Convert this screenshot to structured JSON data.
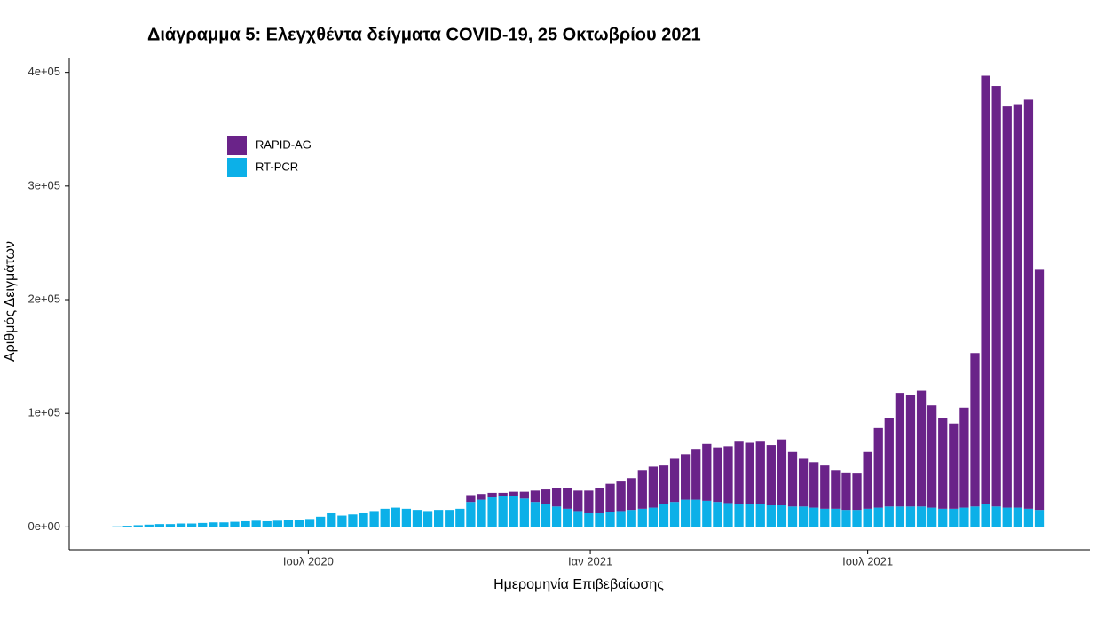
{
  "chart_data": {
    "type": "stacked-bar",
    "title": "Διάγραμμα 5: Ελεγχθέντα δείγματα COVID-19, 25 Οκτωβρίου 2021",
    "x_label": "Ημερομηνία Επιβεβαίωσης",
    "y_label": "Αριθμός Δειγμάτων",
    "x": [
      "2020-02-27",
      "2020-03-05",
      "2020-03-12",
      "2020-03-19",
      "2020-03-26",
      "2020-04-02",
      "2020-04-09",
      "2020-04-16",
      "2020-04-23",
      "2020-04-30",
      "2020-05-07",
      "2020-05-14",
      "2020-05-21",
      "2020-05-28",
      "2020-06-04",
      "2020-06-11",
      "2020-06-18",
      "2020-06-25",
      "2020-07-02",
      "2020-07-09",
      "2020-07-16",
      "2020-07-23",
      "2020-07-30",
      "2020-08-06",
      "2020-08-13",
      "2020-08-20",
      "2020-08-27",
      "2020-09-03",
      "2020-09-10",
      "2020-09-17",
      "2020-09-24",
      "2020-10-01",
      "2020-10-08",
      "2020-10-15",
      "2020-10-22",
      "2020-10-29",
      "2020-11-05",
      "2020-11-12",
      "2020-11-19",
      "2020-11-26",
      "2020-12-03",
      "2020-12-10",
      "2020-12-17",
      "2020-12-24",
      "2020-12-31",
      "2021-01-07",
      "2021-01-14",
      "2021-01-21",
      "2021-01-28",
      "2021-02-04",
      "2021-02-11",
      "2021-02-18",
      "2021-02-25",
      "2021-03-04",
      "2021-03-11",
      "2021-03-18",
      "2021-03-25",
      "2021-04-01",
      "2021-04-08",
      "2021-04-15",
      "2021-04-22",
      "2021-04-29",
      "2021-05-06",
      "2021-05-13",
      "2021-05-20",
      "2021-05-27",
      "2021-06-03",
      "2021-06-10",
      "2021-06-17",
      "2021-06-24",
      "2021-07-01",
      "2021-07-08",
      "2021-07-15",
      "2021-07-22",
      "2021-07-29",
      "2021-08-05",
      "2021-08-12",
      "2021-08-19",
      "2021-08-26",
      "2021-09-02",
      "2021-09-09",
      "2021-09-16",
      "2021-09-23",
      "2021-09-30",
      "2021-10-07",
      "2021-10-14",
      "2021-10-21"
    ],
    "series": [
      {
        "name": "RAPID-AG",
        "color": "#6a2389",
        "values": [
          0,
          0,
          0,
          0,
          0,
          0,
          0,
          0,
          0,
          0,
          0,
          0,
          0,
          0,
          0,
          0,
          0,
          0,
          0,
          0,
          0,
          0,
          0,
          0,
          0,
          0,
          0,
          0,
          0,
          0,
          0,
          0,
          0,
          6000,
          5000,
          4000,
          3000,
          4000,
          6000,
          10000,
          13000,
          16000,
          18000,
          18000,
          20000,
          22000,
          25000,
          26000,
          28000,
          34000,
          36000,
          34000,
          38000,
          40000,
          44000,
          50000,
          48000,
          50000,
          55000,
          54000,
          55000,
          53000,
          58000,
          48000,
          42000,
          40000,
          38000,
          34000,
          33000,
          32000,
          50000,
          70000,
          78000,
          100000,
          98000,
          102000,
          90000,
          80000,
          75000,
          88000,
          135000,
          377000,
          370000,
          353000,
          355000,
          360000,
          212000
        ]
      },
      {
        "name": "RT-PCR",
        "color": "#0cb0e8",
        "values": [
          500,
          1000,
          1500,
          2000,
          2500,
          2500,
          3000,
          3000,
          3500,
          4000,
          4000,
          4500,
          5000,
          5500,
          5000,
          5500,
          6000,
          6500,
          7000,
          9000,
          12000,
          10000,
          11000,
          12000,
          14000,
          16000,
          17000,
          16000,
          15000,
          14000,
          15000,
          15000,
          16000,
          22000,
          24000,
          26000,
          27000,
          27000,
          25000,
          22000,
          20000,
          18000,
          16000,
          14000,
          12000,
          12000,
          13000,
          14000,
          15000,
          16000,
          17000,
          20000,
          22000,
          24000,
          24000,
          23000,
          22000,
          21000,
          20000,
          20000,
          20000,
          19000,
          19000,
          18000,
          18000,
          17000,
          16000,
          16000,
          15000,
          15000,
          16000,
          17000,
          18000,
          18000,
          18000,
          18000,
          17000,
          16000,
          16000,
          17000,
          18000,
          20000,
          18000,
          17000,
          17000,
          16000,
          15000
        ]
      }
    ],
    "xlim": [
      "2020-01-27",
      "2021-11-23"
    ],
    "xticks": [
      {
        "value": "2020-07-01",
        "label": "Ιουλ 2020"
      },
      {
        "value": "2021-01-01",
        "label": "Ιαν 2021"
      },
      {
        "value": "2021-07-01",
        "label": "Ιουλ 2021"
      }
    ],
    "ylim": [
      -20000,
      413000
    ],
    "yticks": [
      {
        "value": 0,
        "label": "0e+00"
      },
      {
        "value": 100000,
        "label": "1e+05"
      },
      {
        "value": 200000,
        "label": "2e+05"
      },
      {
        "value": 300000,
        "label": "3e+05"
      },
      {
        "value": 400000,
        "label": "4e+05"
      }
    ],
    "legend": "top-left"
  }
}
